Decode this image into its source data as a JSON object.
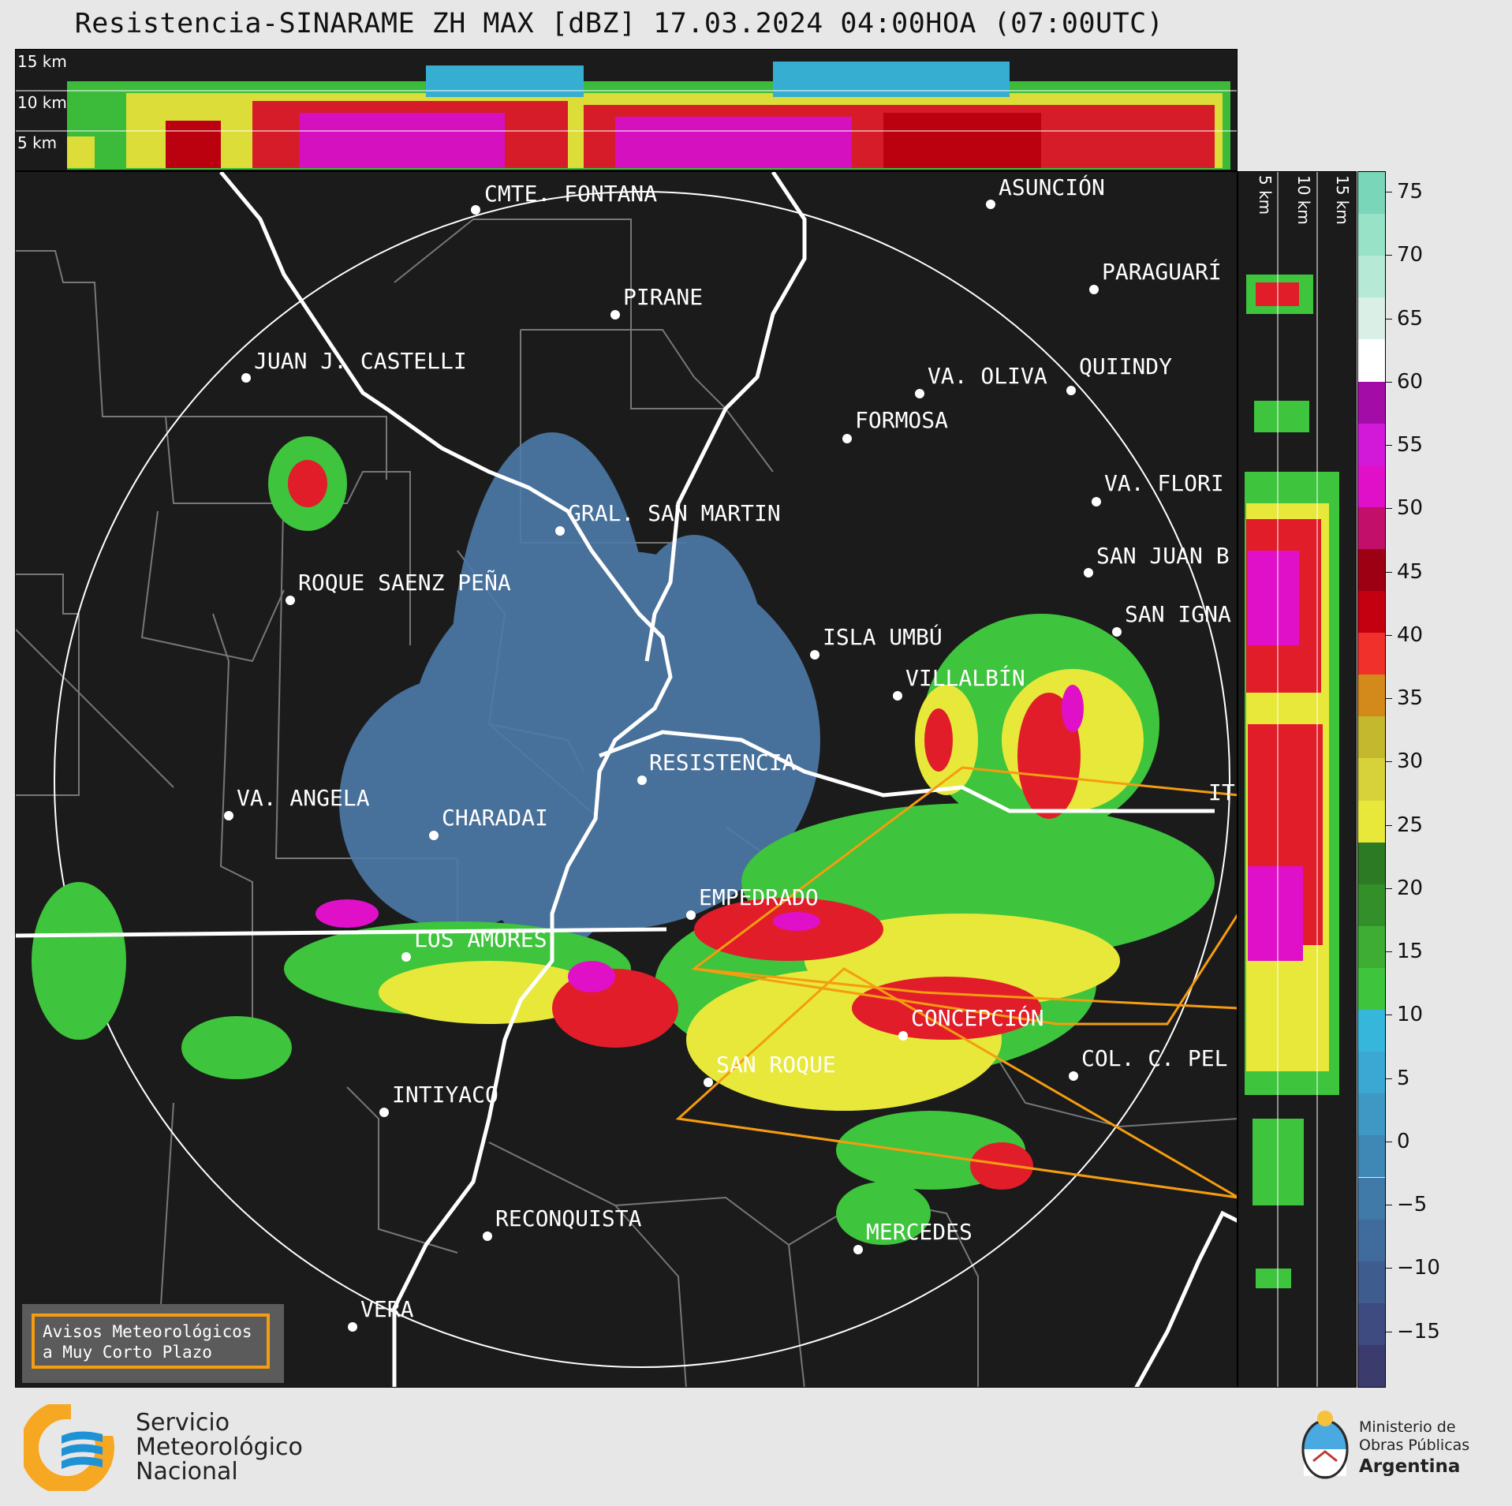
{
  "title": "Resistencia-SINARAME ZH MAX [dBZ] 17.03.2024 04:00HOA (07:00UTC)",
  "top_strip": {
    "height_labels": [
      "15 km",
      "10 km",
      "5 km"
    ]
  },
  "side_strip": {
    "height_labels": [
      "5 km",
      "10 km",
      "15 km"
    ]
  },
  "colorbar": {
    "unit": "dBZ",
    "ticks": [
      "75",
      "70",
      "65",
      "60",
      "55",
      "50",
      "45",
      "40",
      "35",
      "30",
      "25",
      "20",
      "15",
      "10",
      "5",
      "0",
      "−5",
      "−10",
      "−15"
    ],
    "colors": [
      "#3b3b6e",
      "#3d4b80",
      "#3e5c8e",
      "#3f6c9c",
      "#3f7aa8",
      "#3f88b5",
      "#3f98c3",
      "#3aa8d2",
      "#37b6dc",
      "#3ec43d",
      "#3dae33",
      "#338f2a",
      "#2d7a25",
      "#e8e83b",
      "#d8d23a",
      "#c4b82e",
      "#d48a1a",
      "#f0302a",
      "#c40010",
      "#9c0012",
      "#c2106a",
      "#e010c8",
      "#d218d8",
      "#a40ca8",
      "#ffffff",
      "#daf0e6",
      "#b6ead6",
      "#98e2c8",
      "#7ad6b8"
    ]
  },
  "cities": [
    {
      "name": "CMTE. FONTANA"
    },
    {
      "name": "ASUNCIÓN"
    },
    {
      "name": "PARAGUARÍ"
    },
    {
      "name": "PIRANE"
    },
    {
      "name": "JUAN J. CASTELLI"
    },
    {
      "name": "VA. OLIVA"
    },
    {
      "name": "QUIINDY"
    },
    {
      "name": "FORMOSA"
    },
    {
      "name": "VA. FLORI"
    },
    {
      "name": "GRAL. SAN MARTIN"
    },
    {
      "name": "SAN JUAN B"
    },
    {
      "name": "ROQUE SAENZ PEÑA"
    },
    {
      "name": "SAN IGNA"
    },
    {
      "name": "ISLA UMBÚ"
    },
    {
      "name": "VILLALBÍN"
    },
    {
      "name": "RESISTENCIA"
    },
    {
      "name": "VA. ANGELA"
    },
    {
      "name": "CHARADAI"
    },
    {
      "name": "IT"
    },
    {
      "name": "EMPEDRADO"
    },
    {
      "name": "LOS AMORES"
    },
    {
      "name": "CONCEPCIÓN"
    },
    {
      "name": "SAN ROQUE"
    },
    {
      "name": "COL. C. PEL"
    },
    {
      "name": "INTIYACO"
    },
    {
      "name": "RECONQUISTA"
    },
    {
      "name": "MERCEDES"
    },
    {
      "name": "VERA"
    }
  ],
  "legend": {
    "line1": "Avisos Meteorológicos",
    "line2": "a Muy Corto Plazo"
  },
  "footer": {
    "smn": [
      "Servicio",
      "Meteorológico",
      "Nacional"
    ],
    "ministry": [
      "Ministerio de",
      "Obras Públicas",
      "Argentina"
    ]
  }
}
